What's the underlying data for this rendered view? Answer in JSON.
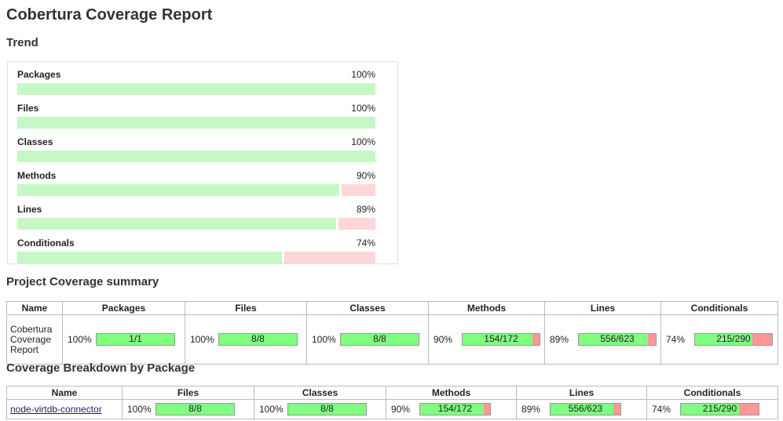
{
  "page": {
    "title": "Cobertura Coverage Report"
  },
  "trend": {
    "heading": "Trend",
    "items": [
      {
        "label": "Packages",
        "percent_text": "100%",
        "percent": 100
      },
      {
        "label": "Files",
        "percent_text": "100%",
        "percent": 100
      },
      {
        "label": "Classes",
        "percent_text": "100%",
        "percent": 100
      },
      {
        "label": "Methods",
        "percent_text": "90%",
        "percent": 90
      },
      {
        "label": "Lines",
        "percent_text": "89%",
        "percent": 89
      },
      {
        "label": "Conditionals",
        "percent_text": "74%",
        "percent": 74
      }
    ]
  },
  "summary": {
    "heading": "Project Coverage summary",
    "columns": [
      "Name",
      "Packages",
      "Files",
      "Classes",
      "Methods",
      "Lines",
      "Conditionals"
    ],
    "row": {
      "name": "Cobertura Coverage Report",
      "metrics": [
        {
          "pct": "100%",
          "ratio": "1/1",
          "percent": 100
        },
        {
          "pct": "100%",
          "ratio": "8/8",
          "percent": 100
        },
        {
          "pct": "100%",
          "ratio": "8/8",
          "percent": 100
        },
        {
          "pct": "90%",
          "ratio": "154/172",
          "percent": 90
        },
        {
          "pct": "89%",
          "ratio": "556/623",
          "percent": 89
        },
        {
          "pct": "74%",
          "ratio": "215/290",
          "percent": 74
        }
      ]
    }
  },
  "breakdown": {
    "heading": "Coverage Breakdown by Package",
    "columns": [
      "Name",
      "Files",
      "Classes",
      "Methods",
      "Lines",
      "Conditionals"
    ],
    "rows": [
      {
        "name": "node-virtdb-connector",
        "metrics": [
          {
            "pct": "100%",
            "ratio": "8/8",
            "percent": 100
          },
          {
            "pct": "100%",
            "ratio": "8/8",
            "percent": 100
          },
          {
            "pct": "90%",
            "ratio": "154/172",
            "percent": 90
          },
          {
            "pct": "89%",
            "ratio": "556/623",
            "percent": 89
          },
          {
            "pct": "74%",
            "ratio": "215/290",
            "percent": 74
          }
        ]
      }
    ]
  },
  "colors": {
    "covered": "#80fe80",
    "uncovered": "#fe9797",
    "trend_covered": "#c6f8c6",
    "trend_uncovered": "#fdd7d7"
  }
}
